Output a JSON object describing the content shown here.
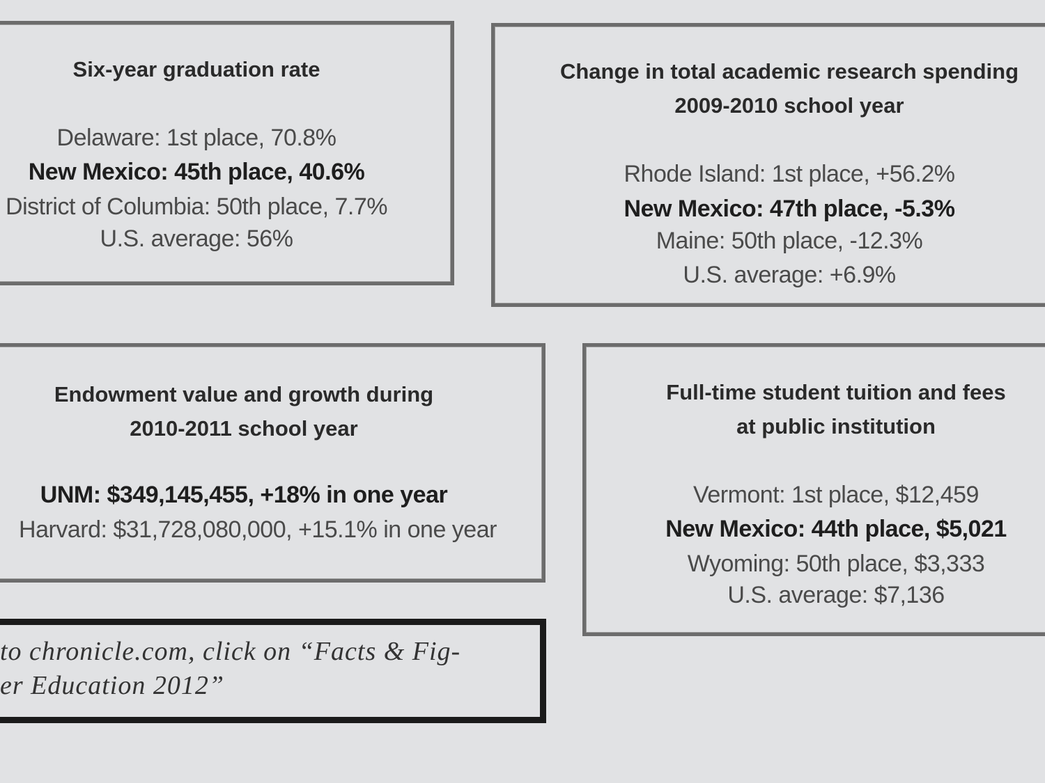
{
  "panels": [
    {
      "title": [
        "Six-year graduation rate"
      ],
      "lines": [
        {
          "text": "Delaware: 1st place, 70.8%",
          "highlight": false
        },
        {
          "text": "New Mexico: 45th place, 40.6%",
          "highlight": true
        },
        {
          "text": "District of Columbia: 50th place, 7.7%",
          "highlight": false
        },
        {
          "text": "U.S. average: 56%",
          "highlight": false
        }
      ]
    },
    {
      "title": [
        "Change in total academic research spending",
        "2009-2010 school year"
      ],
      "lines": [
        {
          "text": "Rhode Island: 1st place, +56.2%",
          "highlight": false
        },
        {
          "text": "New Mexico: 47th place, -5.3%",
          "highlight": true
        },
        {
          "text": "Maine: 50th place, -12.3%",
          "highlight": false
        },
        {
          "text": "U.S. average: +6.9%",
          "highlight": false
        }
      ]
    },
    {
      "title": [
        "Endowment value and growth during",
        "2010-2011 school year"
      ],
      "lines": [
        {
          "text": "UNM: $349,145,455, +18% in one year",
          "highlight": true
        },
        {
          "text": "Harvard: $31,728,080,000, +15.1% in one year",
          "highlight": false
        }
      ]
    },
    {
      "title": [
        "Full-time student tuition and fees",
        "at public institution"
      ],
      "lines": [
        {
          "text": "Vermont: 1st place, $12,459",
          "highlight": false
        },
        {
          "text": "New Mexico: 44th place, $5,021",
          "highlight": true
        },
        {
          "text": "Wyoming: 50th place, $3,333",
          "highlight": false
        },
        {
          "text": "U.S. average: $7,136",
          "highlight": false
        }
      ]
    }
  ],
  "note": {
    "lines": [
      "to chronicle.com, click on “Facts & Fig-",
      "er Education 2012”"
    ]
  }
}
